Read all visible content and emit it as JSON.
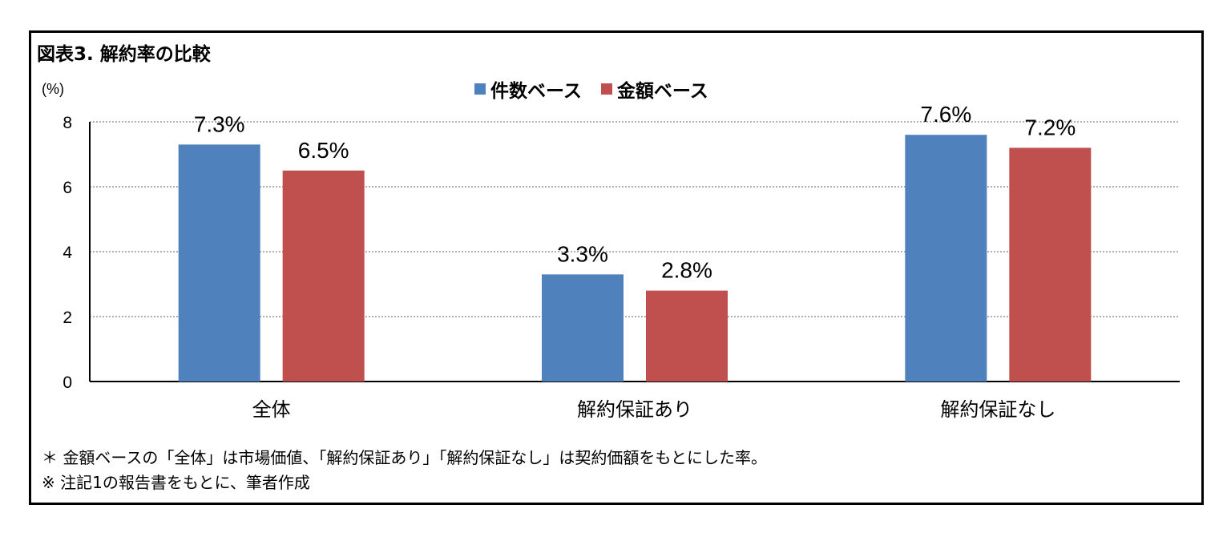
{
  "figure": {
    "title": "図表3.  解約率の比較",
    "notes": [
      "＊  金額ベースの「全体」は市場価値、「解約保証あり」「解約保証なし」は契約価額をもとにした率。",
      "※ 注記1の報告書をもとに、筆者作成"
    ]
  },
  "chart_data": {
    "type": "bar",
    "title": "",
    "unit_label": "(%)",
    "categories": [
      "全体",
      "解約保証あり",
      "解約保証なし"
    ],
    "series": [
      {
        "name": "件数ベース",
        "color": "#4f81bd",
        "values": [
          7.3,
          3.3,
          7.6
        ],
        "labels": [
          "7.3%",
          "3.3%",
          "7.6%"
        ]
      },
      {
        "name": "金額ベース",
        "color": "#c0504d",
        "values": [
          6.5,
          2.8,
          7.2
        ],
        "labels": [
          "6.5%",
          "2.8%",
          "7.2%"
        ]
      }
    ],
    "ylim": [
      0,
      8
    ],
    "yticks": [
      0,
      2,
      4,
      6,
      8
    ],
    "grid": true,
    "legend": "top-center"
  }
}
